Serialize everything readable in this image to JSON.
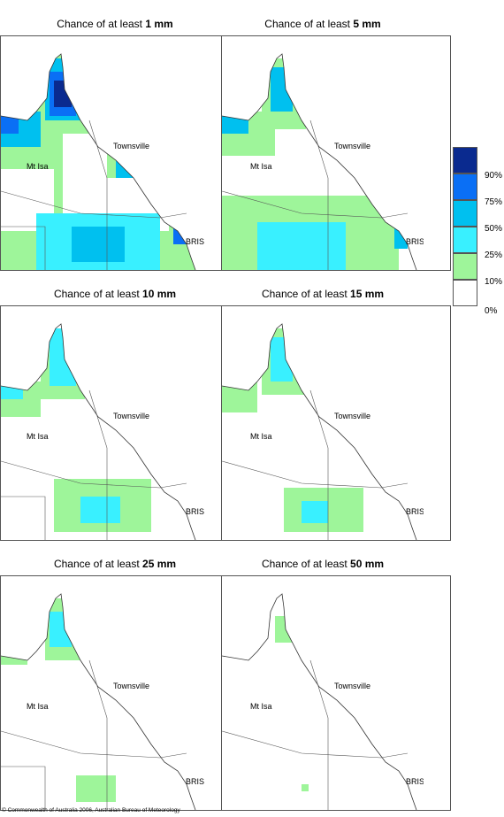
{
  "panels": [
    {
      "prefix": "Chance of at least ",
      "amount": "1 mm"
    },
    {
      "prefix": "Chance of at least ",
      "amount": "5 mm"
    },
    {
      "prefix": "Chance of at least ",
      "amount": "10 mm"
    },
    {
      "prefix": "Chance of at least ",
      "amount": "15 mm"
    },
    {
      "prefix": "Chance of at least ",
      "amount": "25 mm"
    },
    {
      "prefix": "Chance of at least ",
      "amount": "50 mm"
    }
  ],
  "places": {
    "townsville": "Townsville",
    "mt_isa": "Mt Isa",
    "bris": "BRIS"
  },
  "legend": {
    "labels": [
      "90%",
      "75%",
      "50%",
      "25%",
      "10%",
      "0%"
    ],
    "colors": [
      "#0a2a8f",
      "#0a6ff5",
      "#00c0ef",
      "#39f0ff",
      "#9ef59a",
      "#ffffff"
    ]
  },
  "copyright": "© Commonwealth of Australia 2006, Australian Bureau of Meteorology"
}
